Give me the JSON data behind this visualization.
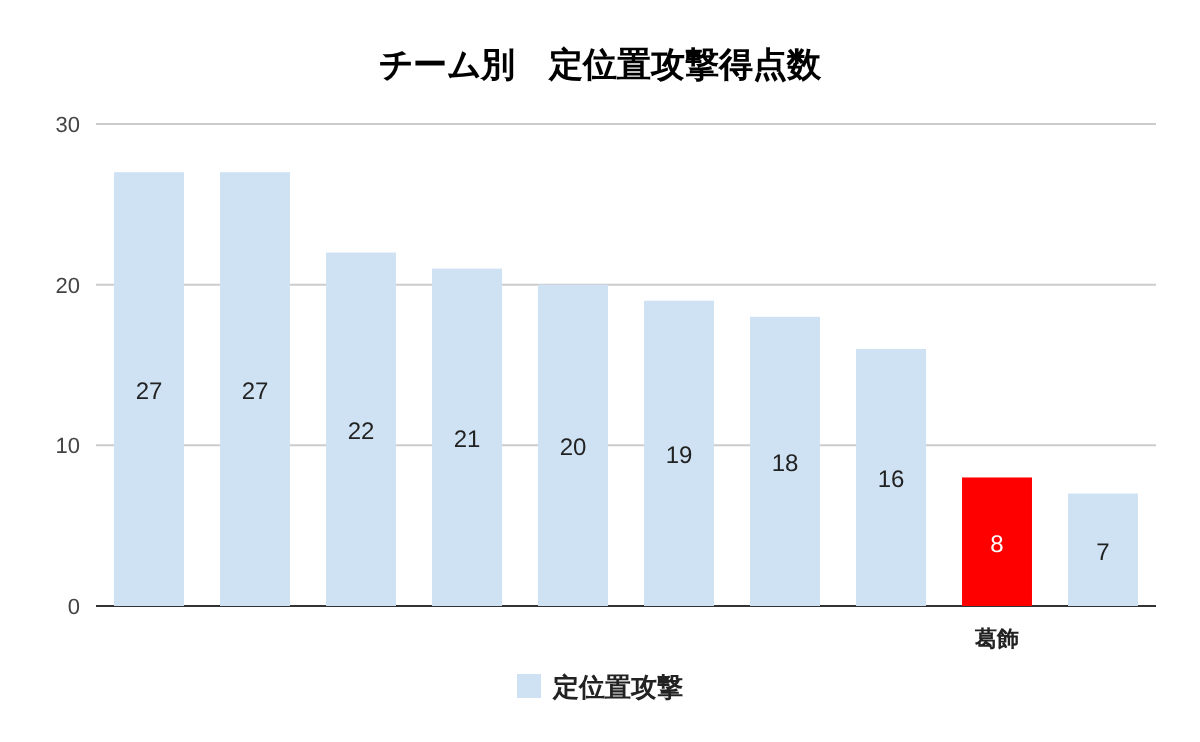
{
  "chart_data": {
    "type": "bar",
    "title": "チーム別　定位置攻撃得点数",
    "categories": [
      null,
      null,
      null,
      null,
      null,
      null,
      null,
      null,
      "葛飾",
      null
    ],
    "series": [
      {
        "name": "定位置攻撃",
        "color": "#cfe2f3",
        "colors": [
          "#cfe2f3",
          "#cfe2f3",
          "#cfe2f3",
          "#cfe2f3",
          "#cfe2f3",
          "#cfe2f3",
          "#cfe2f3",
          "#cfe2f3",
          "#ff0000",
          "#cfe2f3"
        ],
        "values": [
          27,
          27,
          22,
          21,
          20,
          19,
          18,
          16,
          8,
          7
        ]
      }
    ],
    "ylim": [
      0,
      30
    ],
    "yticks": [
      0,
      10,
      20,
      30
    ],
    "grid": "y",
    "legend": "bottom",
    "data_labels": true
  }
}
